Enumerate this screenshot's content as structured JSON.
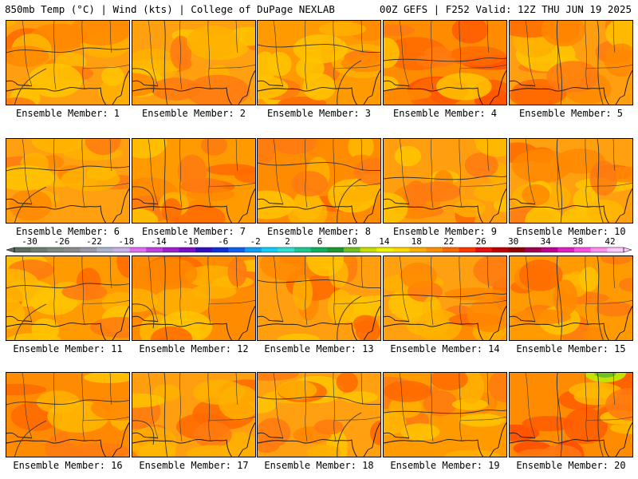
{
  "header": {
    "left": "850mb Temp (°C) | Wind (kts) | College of DuPage NEXLAB",
    "right": "00Z GEFS | F252 Valid: 12Z THU JUN 19 2025"
  },
  "panels": [
    {
      "caption": "Ensemble Member: 1"
    },
    {
      "caption": "Ensemble Member: 2"
    },
    {
      "caption": "Ensemble Member: 3"
    },
    {
      "caption": "Ensemble Member: 4"
    },
    {
      "caption": "Ensemble Member: 5"
    },
    {
      "caption": "Ensemble Member: 6"
    },
    {
      "caption": "Ensemble Member: 7"
    },
    {
      "caption": "Ensemble Member: 8"
    },
    {
      "caption": "Ensemble Member: 9"
    },
    {
      "caption": "Ensemble Member: 10"
    },
    {
      "caption": "Ensemble Member: 11"
    },
    {
      "caption": "Ensemble Member: 12"
    },
    {
      "caption": "Ensemble Member: 13"
    },
    {
      "caption": "Ensemble Member: 14"
    },
    {
      "caption": "Ensemble Member: 15"
    },
    {
      "caption": "Ensemble Member: 16"
    },
    {
      "caption": "Ensemble Member: 17"
    },
    {
      "caption": "Ensemble Member: 18"
    },
    {
      "caption": "Ensemble Member: 19"
    },
    {
      "caption": "Ensemble Member: 20"
    }
  ],
  "colorbar": {
    "labels": [
      "-30",
      "-26",
      "-22",
      "-18",
      "-14",
      "-10",
      "-6",
      "-2",
      "2",
      "6",
      "10",
      "14",
      "18",
      "22",
      "26",
      "30",
      "34",
      "38",
      "42"
    ],
    "colors": [
      "#5e6e5e",
      "#6e7e6e",
      "#7e8a80",
      "#8c8c8c",
      "#9a9aaa",
      "#aab4cc",
      "#c8b0e8",
      "#e070f0",
      "#c040e0",
      "#a020d0",
      "#7810c8",
      "#3010c0",
      "#1030d8",
      "#1060f0",
      "#10a0f8",
      "#10d0f8",
      "#30e0d0",
      "#20c890",
      "#10b060",
      "#209830",
      "#70c020",
      "#c8e000",
      "#f0f000",
      "#ffd800",
      "#ffb000",
      "#ff9000",
      "#ff6a00",
      "#ff3800",
      "#e81010",
      "#c00000",
      "#900000",
      "#a00050",
      "#c00090",
      "#e020c0",
      "#ff50e0",
      "#ff90f0",
      "#ffc8ff"
    ]
  }
}
